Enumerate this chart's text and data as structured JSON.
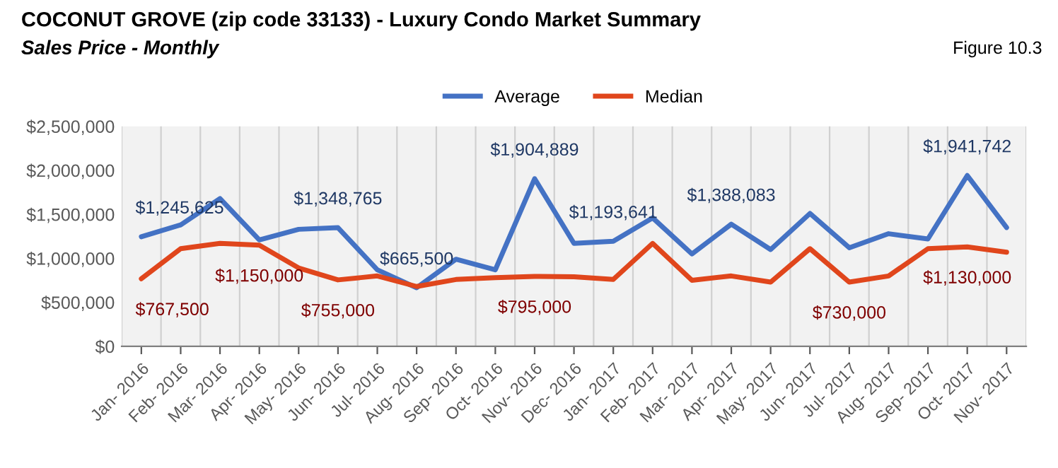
{
  "chart_data": {
    "type": "line",
    "title": "COCONUT GROVE (zip code 33133) - Luxury Condo Market Summary",
    "subtitle": "Sales Price - Monthly",
    "annotations": [
      "Figure 10.3"
    ],
    "categories": [
      "Jan- 2016",
      "Feb- 2016",
      "Mar- 2016",
      "Apr- 2016",
      "May- 2016",
      "Jun- 2016",
      "Jul- 2016",
      "Aug- 2016",
      "Sep- 2016",
      "Oct- 2016",
      "Nov- 2016",
      "Dec- 2016",
      "Jan- 2017",
      "Feb- 2017",
      "Mar- 2017",
      "Apr- 2017",
      "May- 2017",
      "Jun- 2017",
      "Jul- 2017",
      "Aug- 2017",
      "Sep- 2017",
      "Oct- 2017",
      "Nov- 2017"
    ],
    "series": [
      {
        "name": "Average",
        "color": "#4472c4",
        "values": [
          1245625,
          1380000,
          1680000,
          1210000,
          1330000,
          1348765,
          870000,
          665500,
          990000,
          870000,
          1904889,
          1170000,
          1193641,
          1460000,
          1050000,
          1388083,
          1100000,
          1510000,
          1120000,
          1280000,
          1220000,
          1941742,
          1350000
        ],
        "value_labels": [
          "$1,245,625",
          null,
          null,
          null,
          null,
          "$1,348,765",
          null,
          "$665,500",
          null,
          null,
          "$1,904,889",
          null,
          "$1,193,641",
          null,
          null,
          "$1,388,083",
          null,
          null,
          null,
          null,
          null,
          "$1,941,742",
          null
        ]
      },
      {
        "name": "Median",
        "color": "#e0461c",
        "values": [
          767500,
          1110000,
          1170000,
          1150000,
          890000,
          755000,
          800000,
          680000,
          760000,
          780000,
          795000,
          790000,
          760000,
          1170000,
          750000,
          800000,
          730000,
          1110000,
          730000,
          800000,
          1110000,
          1130000,
          1070000
        ],
        "value_labels": [
          "$767,500",
          null,
          null,
          "$1,150,000",
          null,
          "$755,000",
          null,
          null,
          null,
          null,
          "$795,000",
          null,
          null,
          null,
          null,
          null,
          null,
          null,
          "$730,000",
          null,
          null,
          "$1,130,000",
          null
        ]
      }
    ],
    "ylim": [
      0,
      2500000
    ],
    "yticks": [
      {
        "value": 0,
        "label": "$0"
      },
      {
        "value": 500000,
        "label": "$500,000"
      },
      {
        "value": 1000000,
        "label": "$1,000,000"
      },
      {
        "value": 1500000,
        "label": "$1,500,000"
      },
      {
        "value": 2000000,
        "label": "$2,000,000"
      },
      {
        "value": 2500000,
        "label": "$2,500,000"
      }
    ],
    "grid": "x",
    "legend": "top",
    "marker": "none",
    "line_style": "solid"
  }
}
